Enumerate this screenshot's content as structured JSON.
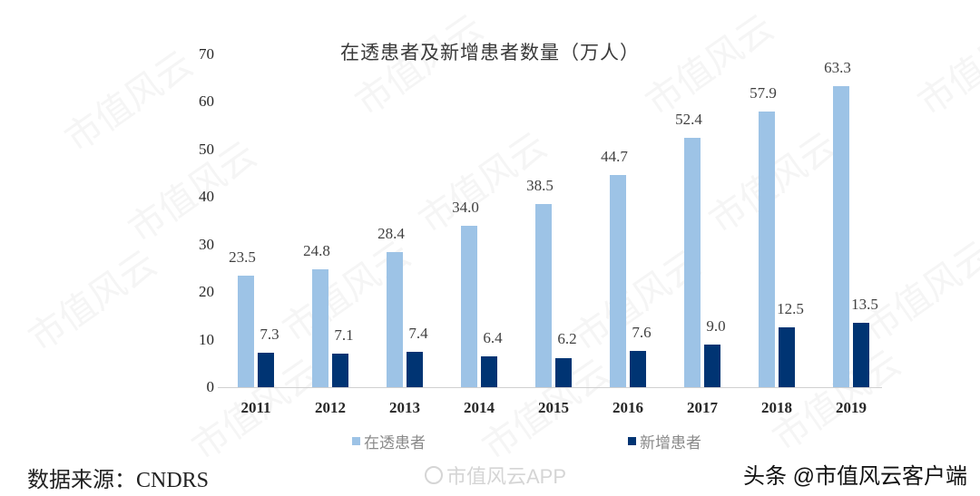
{
  "chart_data": {
    "type": "bar",
    "title": "在透患者及新增患者数量（万人）",
    "xlabel": "",
    "ylabel": "",
    "ylim": [
      0,
      70
    ],
    "yticks": [
      0,
      10,
      20,
      30,
      40,
      50,
      60,
      70
    ],
    "grid": false,
    "legend_position": "bottom",
    "categories": [
      "2011",
      "2012",
      "2013",
      "2014",
      "2015",
      "2016",
      "2017",
      "2018",
      "2019"
    ],
    "series": [
      {
        "name": "在透患者",
        "color": "#9dc3e6",
        "values": [
          23.5,
          24.8,
          28.4,
          34.0,
          38.5,
          44.7,
          52.4,
          57.9,
          63.3
        ],
        "labels": [
          "23.5",
          "24.8",
          "28.4",
          "34.0",
          "38.5",
          "44.7",
          "52.4",
          "57.9",
          "63.3"
        ]
      },
      {
        "name": "新增患者",
        "color": "#003473",
        "values": [
          7.3,
          7.1,
          7.4,
          6.4,
          6.2,
          7.6,
          9.0,
          12.5,
          13.5
        ],
        "labels": [
          "7.3",
          "7.1",
          "7.4",
          "6.4",
          "6.2",
          "7.6",
          "9.0",
          "12.5",
          "13.5"
        ]
      }
    ]
  },
  "footer": {
    "source": "数据来源：CNDRS",
    "weibo_watermark": "市值风云APP",
    "toutiao_watermark": "头条 @市值风云客户端"
  },
  "watermark_text": "市值风云"
}
